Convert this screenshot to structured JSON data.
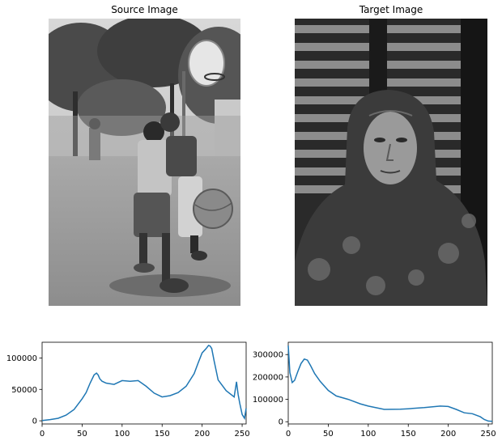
{
  "titles": {
    "source": "Source Image",
    "target": "Target Image"
  },
  "images": {
    "source": "grayscale photo: two boys playing basketball on an outdoor court with trees and a hoop",
    "target": "grayscale portrait: elderly woman in a patterned headscarf against a corrugated metal wall"
  },
  "colors": {
    "line": "#1f77b4",
    "axis": "#000000"
  },
  "chart_data": [
    {
      "type": "line",
      "xlim": [
        0,
        255
      ],
      "ylim": [
        -5000,
        125000
      ],
      "xticks": [
        0,
        50,
        100,
        150,
        200,
        250
      ],
      "yticks": [
        0,
        50000,
        100000
      ],
      "ytick_labels": [
        "0",
        "50000",
        "100000"
      ],
      "x": [
        0,
        10,
        20,
        30,
        40,
        50,
        55,
        60,
        65,
        68,
        70,
        72,
        75,
        80,
        90,
        100,
        110,
        120,
        130,
        140,
        150,
        160,
        170,
        180,
        190,
        195,
        200,
        205,
        208,
        210,
        212,
        215,
        220,
        230,
        240,
        243,
        245,
        247,
        250,
        253,
        255
      ],
      "values": [
        500,
        2000,
        4000,
        9000,
        18000,
        35000,
        45000,
        60000,
        73000,
        76000,
        73000,
        67000,
        63000,
        60000,
        58000,
        64000,
        63000,
        64000,
        55000,
        44000,
        38000,
        40000,
        45000,
        55000,
        75000,
        92000,
        108000,
        115000,
        120000,
        119000,
        115000,
        95000,
        65000,
        48000,
        38000,
        62000,
        42000,
        28000,
        10000,
        4000,
        20000
      ]
    },
    {
      "type": "line",
      "xlim": [
        0,
        255
      ],
      "ylim": [
        -10000,
        355000
      ],
      "xticks": [
        0,
        50,
        100,
        150,
        200,
        250
      ],
      "yticks": [
        0,
        100000,
        200000,
        300000
      ],
      "ytick_labels": [
        "0",
        "100000",
        "200000",
        "300000"
      ],
      "x": [
        0,
        2,
        5,
        8,
        12,
        16,
        20,
        24,
        28,
        33,
        40,
        50,
        60,
        75,
        90,
        100,
        120,
        140,
        150,
        170,
        190,
        200,
        210,
        220,
        230,
        240,
        245,
        250,
        255
      ],
      "values": [
        340000,
        220000,
        175000,
        185000,
        225000,
        260000,
        280000,
        275000,
        250000,
        215000,
        180000,
        140000,
        115000,
        100000,
        80000,
        70000,
        55000,
        56000,
        58000,
        63000,
        70000,
        68000,
        55000,
        40000,
        36000,
        22000,
        10000,
        3000,
        2000
      ]
    }
  ]
}
